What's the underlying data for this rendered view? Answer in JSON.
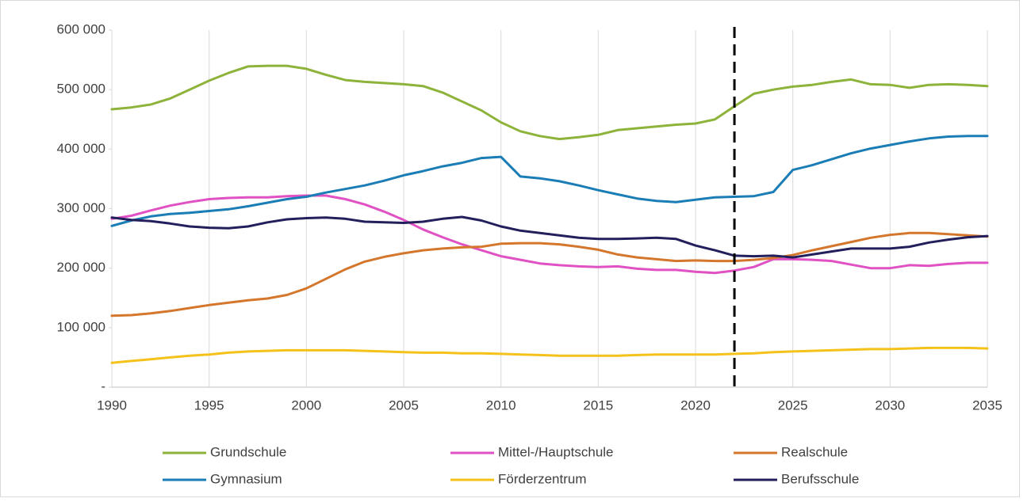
{
  "chart_data": {
    "type": "line",
    "x": [
      1990,
      1991,
      1992,
      1993,
      1994,
      1995,
      1996,
      1997,
      1998,
      1999,
      2000,
      2001,
      2002,
      2003,
      2004,
      2005,
      2006,
      2007,
      2008,
      2009,
      2010,
      2011,
      2012,
      2013,
      2014,
      2015,
      2016,
      2017,
      2018,
      2019,
      2020,
      2021,
      2022,
      2023,
      2024,
      2025,
      2026,
      2027,
      2028,
      2029,
      2030,
      2031,
      2032,
      2033,
      2034,
      2035
    ],
    "series": [
      {
        "name": "Grundschule",
        "color": "#8db33a",
        "values": [
          467000,
          470000,
          475000,
          485000,
          500000,
          515000,
          528000,
          539000,
          540000,
          540000,
          535000,
          525000,
          516000,
          513000,
          511000,
          509000,
          506000,
          495000,
          480000,
          465000,
          445000,
          430000,
          422000,
          417000,
          420000,
          424000,
          432000,
          435000,
          438000,
          441000,
          443000,
          450000,
          472000,
          493000,
          500000,
          505000,
          508000,
          513000,
          517000,
          509000,
          508000,
          503000,
          508000,
          509000,
          508000,
          506000
        ]
      },
      {
        "name": "Mittel-/Hauptschule",
        "color": "#e052c4",
        "values": [
          283000,
          288000,
          297000,
          305000,
          311000,
          316000,
          318000,
          319000,
          319000,
          321000,
          322000,
          322000,
          316000,
          307000,
          295000,
          281000,
          265000,
          252000,
          240000,
          230000,
          220000,
          214000,
          208000,
          205000,
          203000,
          202000,
          203000,
          199000,
          197000,
          197000,
          194000,
          192000,
          196000,
          202000,
          215000,
          215000,
          214000,
          212000,
          206000,
          200000,
          200000,
          205000,
          204000,
          207000,
          209000,
          209000
        ]
      },
      {
        "name": "Realschule",
        "color": "#d4772c",
        "values": [
          120000,
          121000,
          124000,
          128000,
          133000,
          138000,
          142000,
          146000,
          149000,
          155000,
          166000,
          182000,
          198000,
          211000,
          219000,
          225000,
          230000,
          233000,
          235000,
          236000,
          241000,
          242000,
          242000,
          240000,
          236000,
          231000,
          223000,
          218000,
          215000,
          212000,
          213000,
          212000,
          212000,
          214000,
          217000,
          222000,
          230000,
          237000,
          244000,
          251000,
          256000,
          259000,
          259000,
          257000,
          255000,
          253000
        ]
      },
      {
        "name": "Gymnasium",
        "color": "#1a7db5",
        "values": [
          271000,
          280000,
          287000,
          291000,
          293000,
          296000,
          299000,
          304000,
          310000,
          316000,
          320000,
          327000,
          333000,
          339000,
          347000,
          356000,
          363000,
          371000,
          377000,
          385000,
          387000,
          354000,
          351000,
          346000,
          339000,
          331000,
          324000,
          317000,
          313000,
          311000,
          315000,
          319000,
          320000,
          321000,
          328000,
          365000,
          373000,
          383000,
          393000,
          401000,
          407000,
          413000,
          418000,
          421000,
          422000,
          422000
        ]
      },
      {
        "name": "Förderzentrum",
        "color": "#f5c21b",
        "values": [
          41000,
          44000,
          47000,
          50000,
          53000,
          55000,
          58000,
          60000,
          61000,
          62000,
          62000,
          62000,
          62000,
          61000,
          60000,
          59000,
          58000,
          58000,
          57000,
          57000,
          56000,
          55000,
          54000,
          53000,
          53000,
          53000,
          53000,
          54000,
          55000,
          55000,
          55000,
          55000,
          56000,
          57000,
          59000,
          60000,
          61000,
          62000,
          63000,
          64000,
          64000,
          65000,
          66000,
          66000,
          66000,
          65000
        ]
      },
      {
        "name": "Berufsschule",
        "color": "#231f5c",
        "values": [
          285000,
          281000,
          279000,
          275000,
          270000,
          268000,
          267000,
          270000,
          277000,
          282000,
          284000,
          285000,
          283000,
          278000,
          277000,
          276000,
          278000,
          283000,
          286000,
          280000,
          270000,
          263000,
          259000,
          255000,
          251000,
          249000,
          249000,
          250000,
          251000,
          249000,
          238000,
          230000,
          221000,
          220000,
          221000,
          218000,
          223000,
          228000,
          233000,
          233000,
          233000,
          236000,
          243000,
          248000,
          252000,
          254000
        ]
      }
    ],
    "xlim": [
      1990,
      2035
    ],
    "xticks": [
      1990,
      1995,
      2000,
      2005,
      2010,
      2015,
      2020,
      2025,
      2030,
      2035
    ],
    "ylim": [
      0,
      600000
    ],
    "yticks": [
      {
        "value": 0,
        "label": "-"
      },
      {
        "value": 100000,
        "label": "100 000"
      },
      {
        "value": 200000,
        "label": "200 000"
      },
      {
        "value": 300000,
        "label": "300 000"
      },
      {
        "value": 400000,
        "label": "400 000"
      },
      {
        "value": 500000,
        "label": "500 000"
      },
      {
        "value": 600000,
        "label": "600 000"
      }
    ],
    "grid": true,
    "forecast_line": 2022
  }
}
